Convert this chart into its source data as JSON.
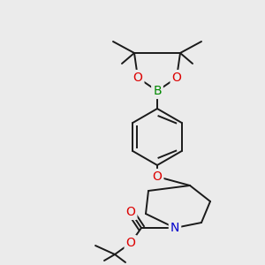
{
  "bg_color": "#ebebeb",
  "bond_color": "#1a1a1a",
  "line_width": 1.4,
  "atom_colors": {
    "O": "#dd0000",
    "N": "#0000cc",
    "B": "#008800",
    "C": "#1a1a1a"
  },
  "figsize": [
    3.0,
    3.0
  ],
  "dpi": 100
}
